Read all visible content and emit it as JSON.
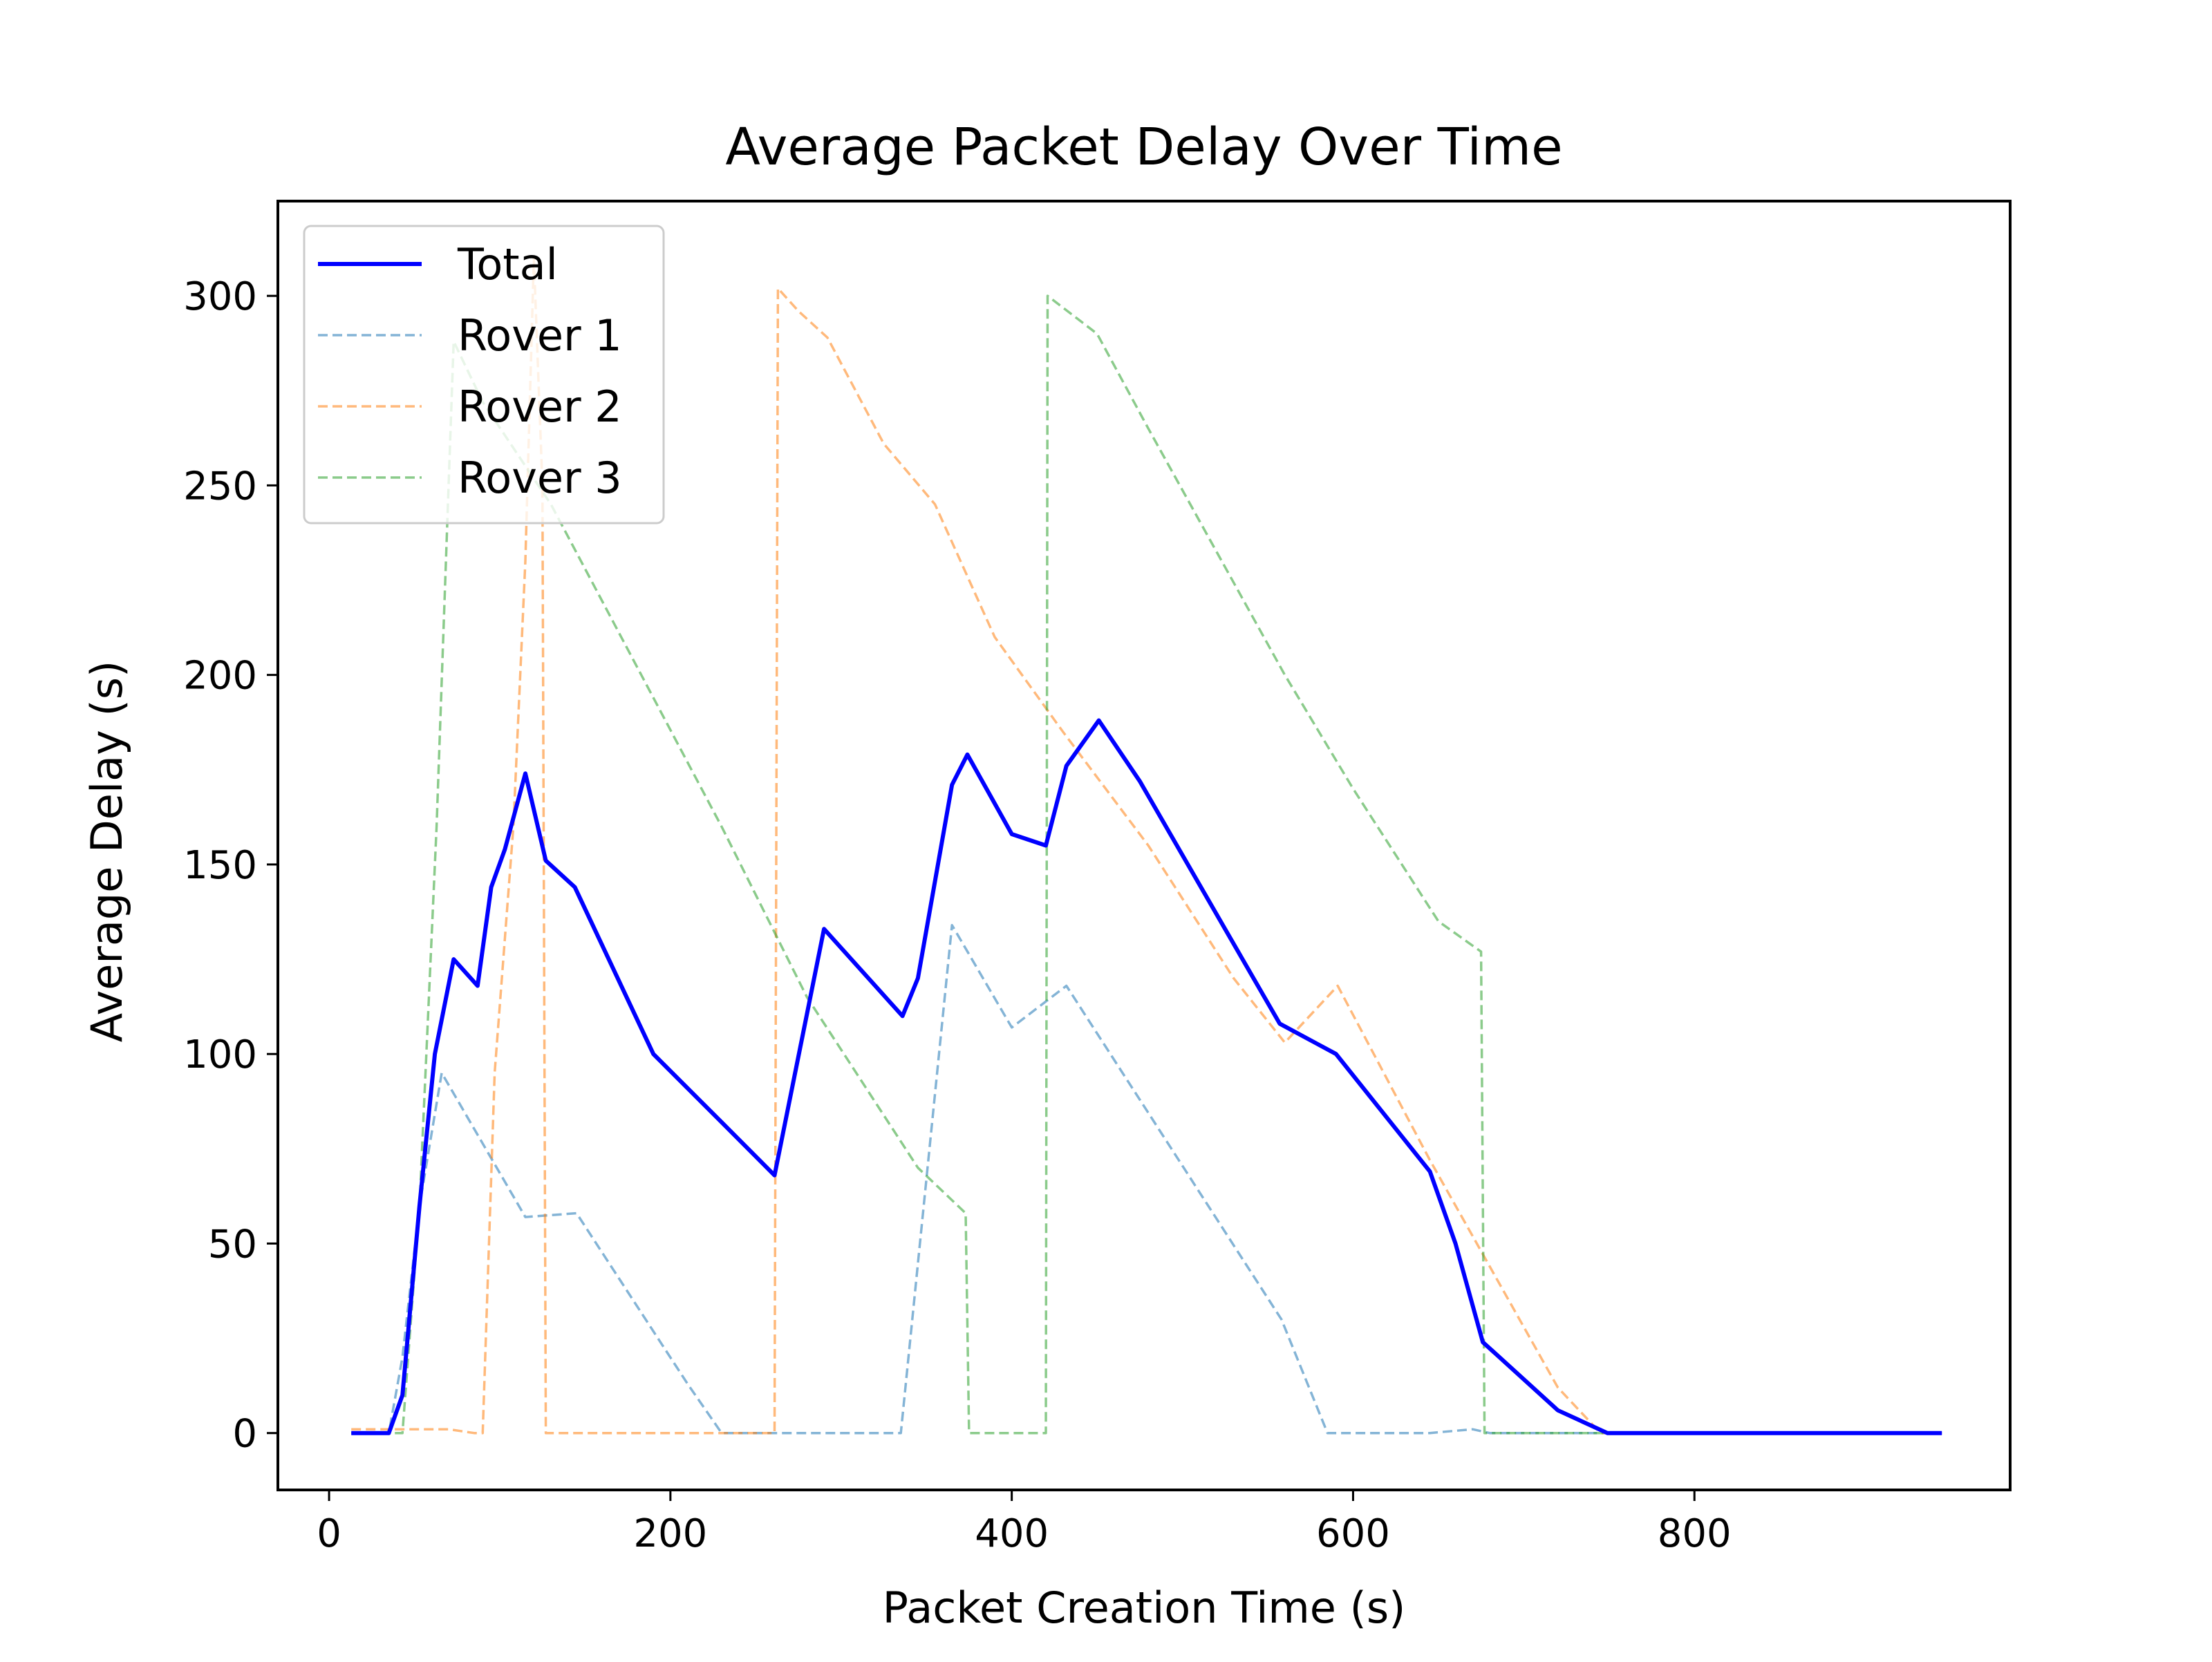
{
  "chart_data": {
    "type": "line",
    "title": "Average Packet Delay Over Time",
    "xlabel": "Packet Creation Time (s)",
    "ylabel": "Average Delay (s)",
    "xlim": [
      -30,
      985
    ],
    "ylim": [
      -15,
      325
    ],
    "xticks": [
      0,
      200,
      400,
      600,
      800
    ],
    "xtick_labels": [
      "0",
      "200",
      "400",
      "600",
      "800"
    ],
    "yticks": [
      0,
      50,
      100,
      150,
      200,
      250,
      300
    ],
    "ytick_labels": [
      "0",
      "50",
      "100",
      "150",
      "200",
      "250",
      "300"
    ],
    "grid": false,
    "legend_position": "top-left",
    "series": [
      {
        "name": "Total",
        "color": "#0000ff",
        "style": "solid",
        "points": [
          [
            13,
            0
          ],
          [
            35,
            0
          ],
          [
            43,
            10
          ],
          [
            53,
            60
          ],
          [
            62,
            100
          ],
          [
            73,
            125
          ],
          [
            87,
            118
          ],
          [
            95,
            144
          ],
          [
            103,
            154
          ],
          [
            115,
            174
          ],
          [
            127,
            151
          ],
          [
            144,
            144
          ],
          [
            190,
            100
          ],
          [
            230,
            82
          ],
          [
            261,
            68
          ],
          [
            290,
            133
          ],
          [
            330,
            113
          ],
          [
            336,
            110
          ],
          [
            345,
            120
          ],
          [
            365,
            171
          ],
          [
            374,
            179
          ],
          [
            400,
            158
          ],
          [
            420,
            155
          ],
          [
            432,
            176
          ],
          [
            451,
            188
          ],
          [
            475,
            172
          ],
          [
            557,
            108
          ],
          [
            590,
            100
          ],
          [
            645,
            69
          ],
          [
            660,
            50
          ],
          [
            676,
            24
          ],
          [
            720,
            6
          ],
          [
            749,
            0
          ],
          [
            945,
            0
          ]
        ]
      },
      {
        "name": "Rover 1",
        "color": "#1f77b4",
        "style": "dashed",
        "points": [
          [
            13,
            0
          ],
          [
            35,
            0
          ],
          [
            43,
            20
          ],
          [
            53,
            60
          ],
          [
            66,
            95
          ],
          [
            115,
            57
          ],
          [
            145,
            58
          ],
          [
            210,
            13
          ],
          [
            230,
            0
          ],
          [
            335,
            0
          ],
          [
            365,
            134
          ],
          [
            400,
            107
          ],
          [
            432,
            118
          ],
          [
            558,
            30
          ],
          [
            585,
            0
          ],
          [
            645,
            0
          ],
          [
            670,
            1
          ],
          [
            680,
            0
          ],
          [
            945,
            0
          ]
        ]
      },
      {
        "name": "Rover 2",
        "color": "#ff7f0e",
        "style": "dashed",
        "points": [
          [
            13,
            1
          ],
          [
            30,
            1
          ],
          [
            70,
            1
          ],
          [
            85,
            0
          ],
          [
            90,
            0
          ],
          [
            97,
            95
          ],
          [
            108,
            160
          ],
          [
            115,
            230
          ],
          [
            120,
            310
          ],
          [
            125,
            250
          ],
          [
            127,
            0
          ],
          [
            261,
            0
          ],
          [
            263,
            302
          ],
          [
            275,
            296
          ],
          [
            292,
            289
          ],
          [
            325,
            261
          ],
          [
            355,
            245
          ],
          [
            390,
            210
          ],
          [
            430,
            185
          ],
          [
            480,
            155
          ],
          [
            530,
            120
          ],
          [
            560,
            103
          ],
          [
            591,
            118
          ],
          [
            645,
            72
          ],
          [
            720,
            12
          ],
          [
            745,
            0
          ],
          [
            945,
            0
          ]
        ]
      },
      {
        "name": "Rover 3",
        "color": "#2ca02c",
        "style": "dashed",
        "points": [
          [
            13,
            0
          ],
          [
            43,
            0
          ],
          [
            53,
            60
          ],
          [
            63,
            160
          ],
          [
            73,
            288
          ],
          [
            90,
            272
          ],
          [
            130,
            245
          ],
          [
            230,
            160
          ],
          [
            280,
            115
          ],
          [
            345,
            70
          ],
          [
            373,
            58
          ],
          [
            375,
            0
          ],
          [
            420,
            0
          ],
          [
            421,
            300
          ],
          [
            450,
            290
          ],
          [
            480,
            265
          ],
          [
            560,
            200
          ],
          [
            600,
            170
          ],
          [
            650,
            135
          ],
          [
            675,
            127
          ],
          [
            677,
            0
          ],
          [
            700,
            0
          ],
          [
            945,
            0
          ]
        ]
      }
    ]
  }
}
